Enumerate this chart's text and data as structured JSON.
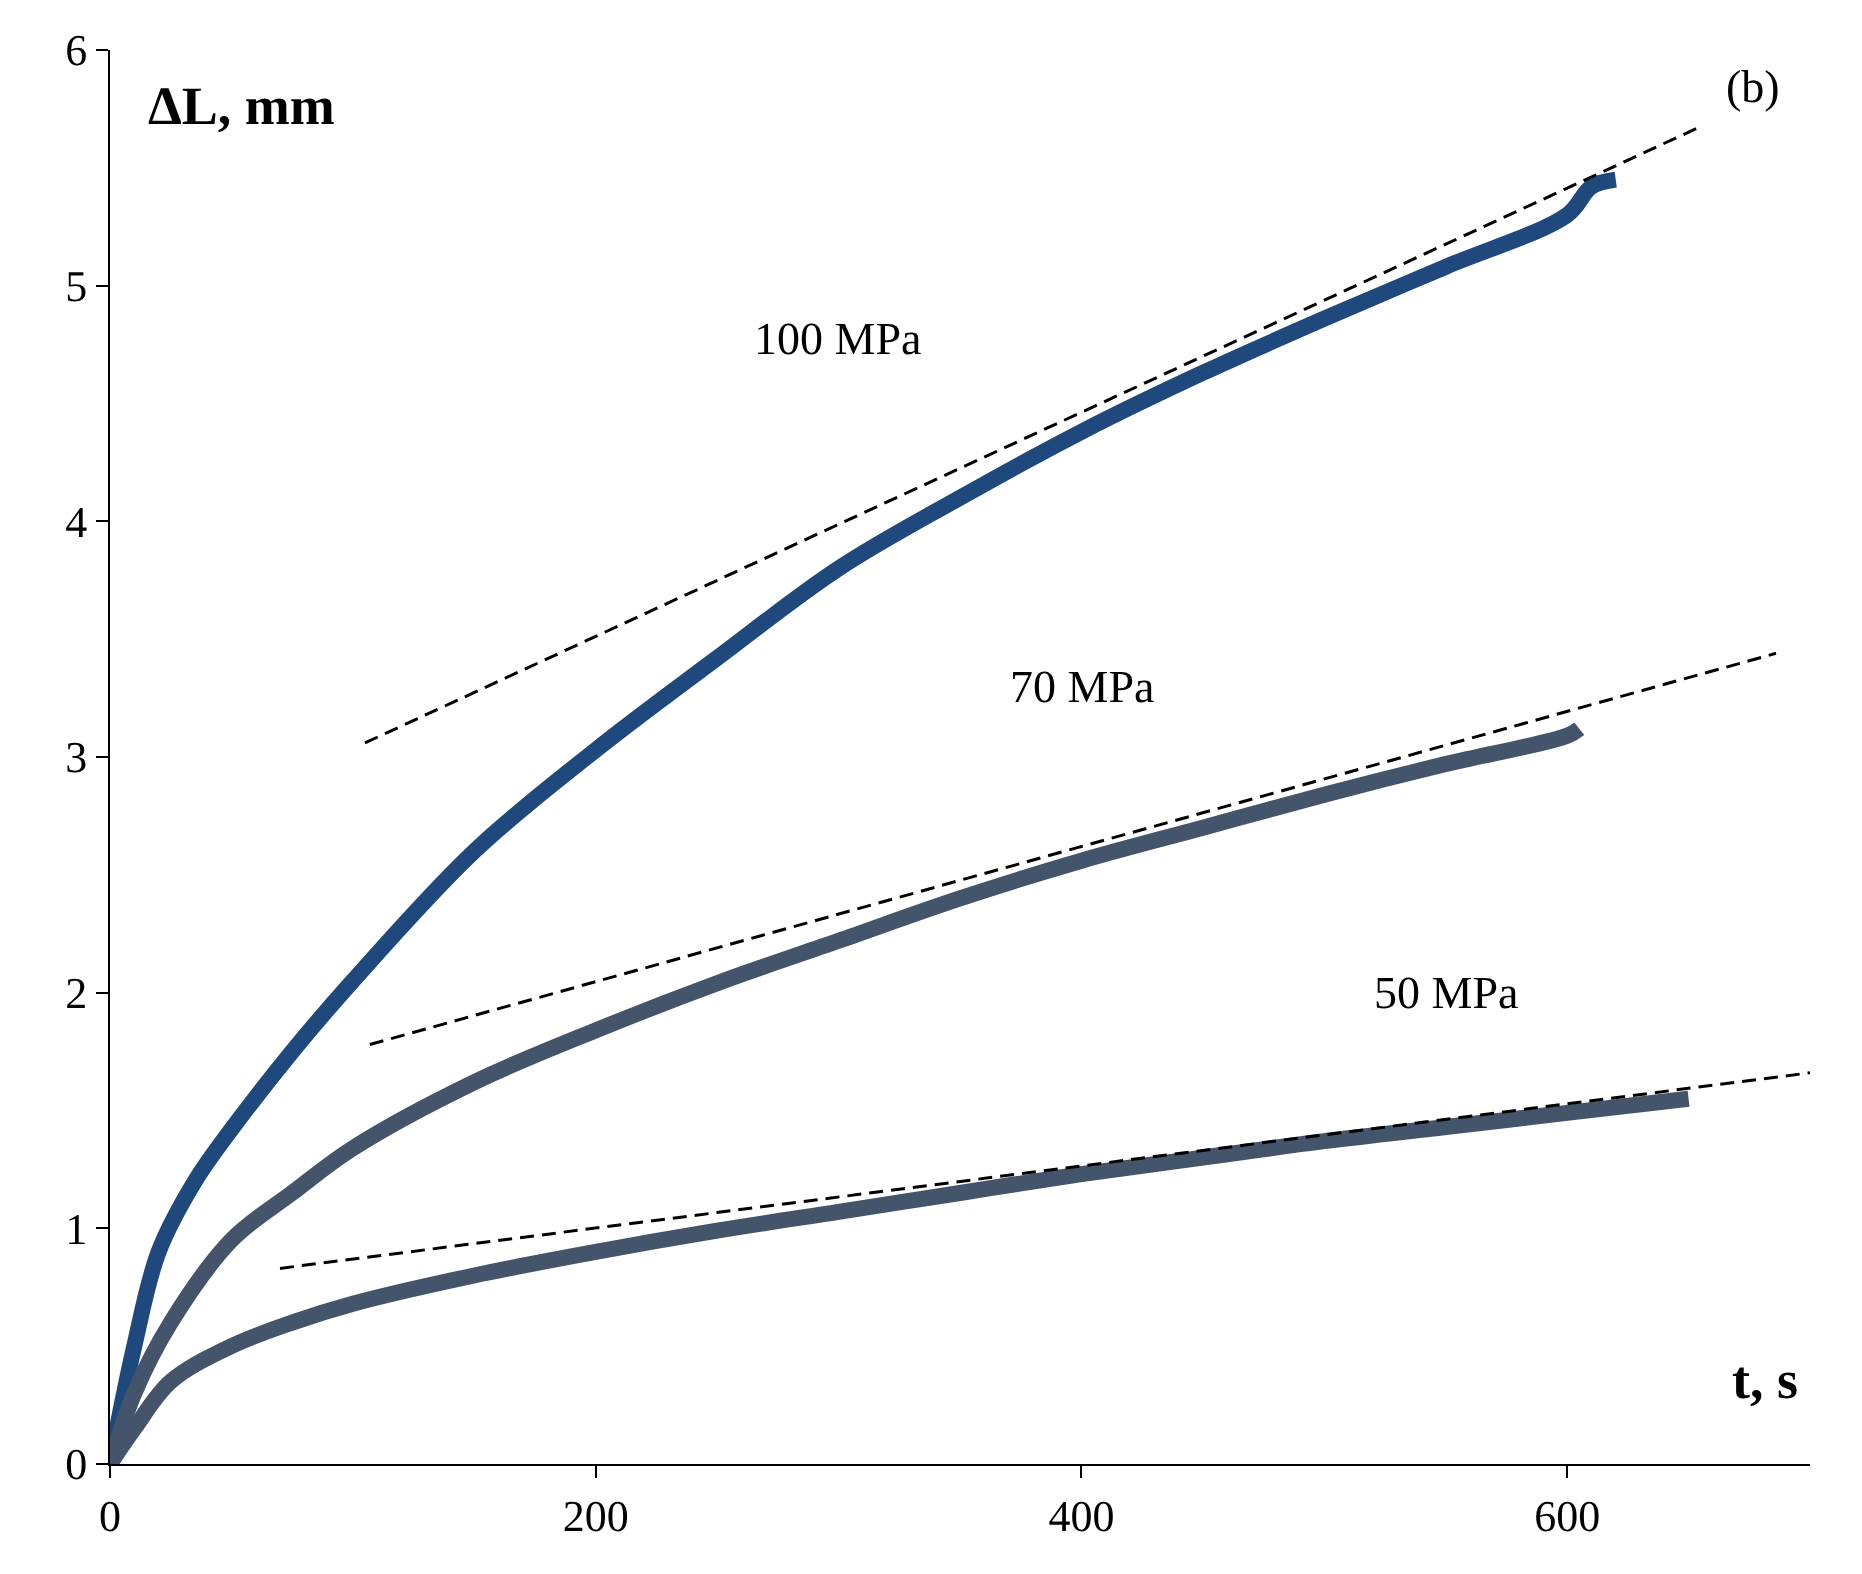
{
  "chart_data": {
    "type": "line",
    "xlabel": "t, s",
    "ylabel": "ΔL, mm",
    "x": [
      0,
      10,
      20,
      35,
      50,
      75,
      100,
      150,
      200,
      250,
      300,
      350,
      400,
      450,
      500,
      550,
      600,
      610,
      620
    ],
    "series": [
      {
        "name": "100 MPa",
        "color": "#1f497d",
        "values": [
          0,
          0.5,
          0.9,
          1.2,
          1.42,
          1.75,
          2.05,
          2.6,
          3.03,
          3.42,
          3.8,
          4.1,
          4.38,
          4.63,
          4.86,
          5.08,
          5.3,
          5.42,
          5.45
        ]
      },
      {
        "name": "70 MPa",
        "color": "#44546a",
        "x": [
          0,
          10,
          25,
          50,
          75,
          100,
          150,
          200,
          250,
          300,
          350,
          400,
          450,
          500,
          550,
          600,
          605
        ],
        "values": [
          0,
          0.3,
          0.6,
          0.95,
          1.15,
          1.34,
          1.62,
          1.84,
          2.04,
          2.22,
          2.4,
          2.56,
          2.7,
          2.84,
          2.97,
          3.09,
          3.12
        ]
      },
      {
        "name": "50 MPa",
        "color": "#44546a",
        "x": [
          0,
          10,
          25,
          50,
          75,
          100,
          150,
          200,
          250,
          300,
          350,
          400,
          450,
          500,
          550,
          600,
          650
        ],
        "values": [
          0,
          0.15,
          0.35,
          0.5,
          0.6,
          0.68,
          0.8,
          0.9,
          0.99,
          1.07,
          1.15,
          1.23,
          1.3,
          1.37,
          1.43,
          1.49,
          1.55
        ]
      },
      {
        "type": "line",
        "color": "#000000",
        "line_style": "dashed",
        "x": [
          105,
          656
        ],
        "values": [
          3.06,
          5.68
        ]
      },
      {
        "type": "line",
        "color": "#000000",
        "line_style": "dashed",
        "x": [
          107,
          686
        ],
        "values": [
          1.78,
          3.44
        ]
      },
      {
        "type": "line",
        "color": "#000000",
        "line_style": "dashed",
        "x": [
          70,
          700
        ],
        "values": [
          0.83,
          1.66
        ]
      }
    ],
    "xlim": [
      0,
      700
    ],
    "xticks": [
      0,
      200,
      400,
      600
    ],
    "ylim": [
      0,
      6
    ],
    "yticks": [
      0,
      1,
      2,
      3,
      4,
      5,
      6
    ],
    "legend": false,
    "marker": "none",
    "line_style": "solid",
    "annotations": [
      "(b)"
    ]
  }
}
